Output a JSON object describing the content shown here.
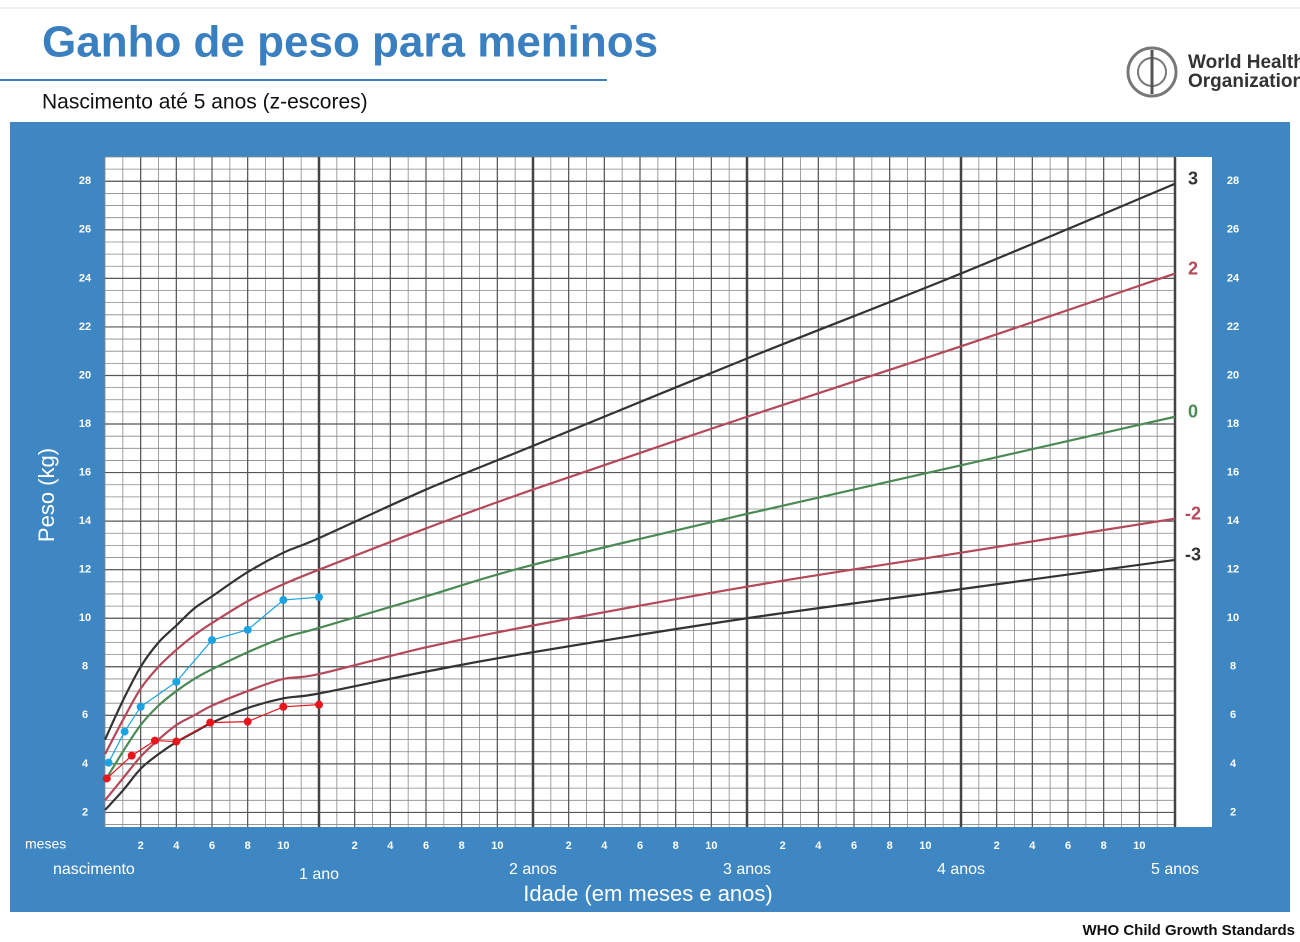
{
  "chart_data": {
    "type": "line",
    "title": "Ganho de peso para meninos",
    "subtitle": "Nascimento até 5 anos (z-escores)",
    "organization": [
      "World Health",
      "Organization"
    ],
    "source": "WHO Child Growth Standards",
    "y_label": "Peso (kg)",
    "x_label": "Idade (em meses e anos)",
    "x_unit_label": "meses",
    "xlim": [
      0,
      60
    ],
    "ylim": [
      1.4,
      29
    ],
    "yticks": [
      2,
      4,
      6,
      8,
      10,
      12,
      14,
      16,
      18,
      20,
      22,
      24,
      26,
      28
    ],
    "xticks": [
      2,
      4,
      6,
      8,
      10,
      {
        "value": 14,
        "label": "2"
      },
      {
        "value": 16,
        "label": "4"
      },
      {
        "value": 18,
        "label": "6"
      },
      {
        "value": 20,
        "label": "8"
      },
      {
        "value": 22,
        "label": "10"
      },
      {
        "value": 26,
        "label": "2"
      },
      {
        "value": 28,
        "label": "4"
      },
      {
        "value": 30,
        "label": "6"
      },
      {
        "value": 32,
        "label": "8"
      },
      {
        "value": 34,
        "label": "10"
      },
      {
        "value": 38,
        "label": "2"
      },
      {
        "value": 40,
        "label": "4"
      },
      {
        "value": 42,
        "label": "6"
      },
      {
        "value": 44,
        "label": "8"
      },
      {
        "value": 46,
        "label": "10"
      },
      {
        "value": 50,
        "label": "2"
      },
      {
        "value": 52,
        "label": "4"
      },
      {
        "value": 54,
        "label": "6"
      },
      {
        "value": 56,
        "label": "8"
      },
      {
        "value": 58,
        "label": "10"
      }
    ],
    "year_ticks": [
      {
        "value": 0,
        "label": "nascimento"
      },
      {
        "value": 12,
        "label": "1 ano"
      },
      {
        "value": 24,
        "label": "2 anos"
      },
      {
        "value": 36,
        "label": "3 anos"
      },
      {
        "value": 48,
        "label": "4 anos"
      },
      {
        "value": 60,
        "label": "5 anos"
      }
    ],
    "grid": true,
    "x": [
      0,
      1,
      2,
      3,
      4,
      5,
      6,
      8,
      10,
      12,
      18,
      24,
      36,
      48,
      60
    ],
    "series": [
      {
        "name": "3",
        "color": "#333333",
        "values": [
          5.0,
          6.6,
          8.0,
          9.0,
          9.7,
          10.4,
          10.9,
          11.9,
          12.7,
          13.3,
          15.3,
          17.1,
          20.7,
          24.2,
          27.9
        ]
      },
      {
        "name": "2",
        "color": "#b5485a",
        "values": [
          4.4,
          5.8,
          7.1,
          8.0,
          8.7,
          9.3,
          9.8,
          10.7,
          11.4,
          12.0,
          13.7,
          15.3,
          18.3,
          21.2,
          24.2
        ]
      },
      {
        "name": "0",
        "color": "#4a8a55",
        "values": [
          3.3,
          4.5,
          5.6,
          6.4,
          7.0,
          7.5,
          7.9,
          8.6,
          9.2,
          9.6,
          10.9,
          12.2,
          14.3,
          16.3,
          18.3
        ]
      },
      {
        "name": "-2",
        "color": "#b5485a",
        "values": [
          2.5,
          3.4,
          4.3,
          5.0,
          5.6,
          6.0,
          6.4,
          7.0,
          7.5,
          7.7,
          8.8,
          9.7,
          11.3,
          12.7,
          14.1
        ]
      },
      {
        "name": "-3",
        "color": "#333333",
        "values": [
          2.1,
          2.9,
          3.8,
          4.4,
          4.9,
          5.3,
          5.7,
          6.3,
          6.7,
          6.9,
          7.8,
          8.6,
          10.0,
          11.2,
          12.4
        ]
      }
    ],
    "measurements": [
      {
        "color": "#1aa3e0",
        "x": [
          0.2,
          1.1,
          2,
          4,
          6,
          8,
          10,
          12
        ],
        "values": [
          4.05,
          5.33,
          6.35,
          7.38,
          9.1,
          9.52,
          10.75,
          10.87
        ]
      },
      {
        "color": "#e8141b",
        "x": [
          0.1,
          1.5,
          2.8,
          4,
          5.9,
          8,
          10,
          12
        ],
        "values": [
          3.4,
          4.34,
          4.96,
          4.92,
          5.7,
          5.74,
          6.35,
          6.44
        ]
      }
    ]
  }
}
